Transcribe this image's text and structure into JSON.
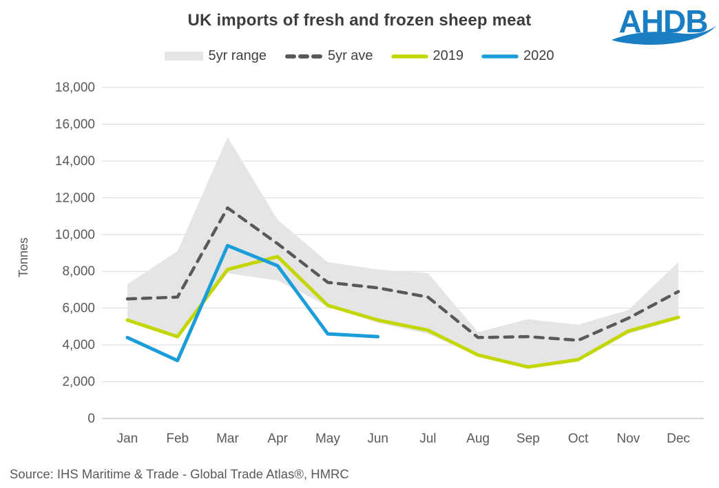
{
  "logo": {
    "text": "AHDB",
    "color": "#1a7ec5"
  },
  "source": "Source: IHS Maritime & Trade - Global Trade Atlas®, HMRC",
  "chart_data": {
    "type": "line",
    "title": "UK imports of fresh and frozen sheep meat",
    "xlabel": "",
    "ylabel": "Tonnes",
    "ylim": [
      0,
      18000
    ],
    "ytick_interval": 2000,
    "grid": true,
    "legend_position": "top",
    "categories": [
      "Jan",
      "Feb",
      "Mar",
      "Apr",
      "May",
      "Jun",
      "Jul",
      "Aug",
      "Sep",
      "Oct",
      "Nov",
      "Dec"
    ],
    "series": [
      {
        "name": "5yr range",
        "type": "band",
        "color": "#e5e5e5",
        "upper": [
          7300,
          9100,
          15300,
          10800,
          8500,
          8100,
          7900,
          4700,
          5400,
          5100,
          5900,
          8500
        ],
        "lower": [
          5400,
          4400,
          7900,
          7500,
          6100,
          5200,
          4600,
          3400,
          2700,
          3100,
          4600,
          5400
        ]
      },
      {
        "name": "5yr ave",
        "type": "dashed-line",
        "color": "#595959",
        "values": [
          6500,
          6600,
          11450,
          9500,
          7400,
          7100,
          6600,
          4400,
          4450,
          4250,
          5450,
          6900
        ]
      },
      {
        "name": "2019",
        "type": "line",
        "color": "#c3d600",
        "values": [
          5350,
          4450,
          8100,
          8800,
          6150,
          5350,
          4800,
          3450,
          2800,
          3200,
          4750,
          5500
        ]
      },
      {
        "name": "2020",
        "type": "line",
        "color": "#1b9dd9",
        "values": [
          4400,
          3150,
          9400,
          8300,
          4600,
          4450
        ]
      }
    ]
  }
}
